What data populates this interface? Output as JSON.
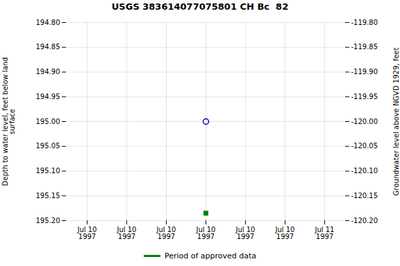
{
  "chart_data": {
    "type": "scatter",
    "title": "USGS 383614077075801 CH Bc  82",
    "ylabel": "Depth to water level, feet below land\nsurface",
    "y2label": "Groundwater level above NGVD 1929, feet",
    "categories": [
      "Jul 10\n1997",
      "Jul 10\n1997",
      "Jul 10\n1997",
      "Jul 10\n1997",
      "Jul 10\n1997",
      "Jul 10\n1997",
      "Jul 11\n1997"
    ],
    "series": [
      {
        "color": "#0000cc",
        "marker": "circle-open",
        "values": [
          null,
          null,
          null,
          195.0,
          null,
          null,
          null
        ]
      },
      {
        "name": "Period of approved data",
        "color": "#008000",
        "marker": "square",
        "values": [
          null,
          null,
          null,
          195.185,
          null,
          null,
          null
        ]
      }
    ],
    "ylim": [
      195.2,
      194.8
    ],
    "yticks": [
      {
        "value": 194.8,
        "label": "194.80"
      },
      194.85,
      {
        "value": 194.9,
        "label": "194.90"
      },
      194.95,
      {
        "value": 195.0,
        "label": "195.00"
      },
      195.05,
      {
        "value": 195.1,
        "label": "195.10"
      },
      195.15,
      {
        "value": 195.2,
        "label": "195.20"
      }
    ],
    "y2lim": [
      -120.2,
      -119.8
    ],
    "y2ticks": [
      {
        "value": -119.8,
        "label": "-119.80"
      },
      -119.85,
      {
        "value": -119.9,
        "label": "-119.90"
      },
      -119.95,
      {
        "value": -120.0,
        "label": "-120.00"
      },
      -120.05,
      {
        "value": -120.1,
        "label": "-120.10"
      },
      -120.15,
      {
        "value": -120.2,
        "label": "-120.20"
      }
    ],
    "grid": true,
    "legend": "bottom"
  }
}
